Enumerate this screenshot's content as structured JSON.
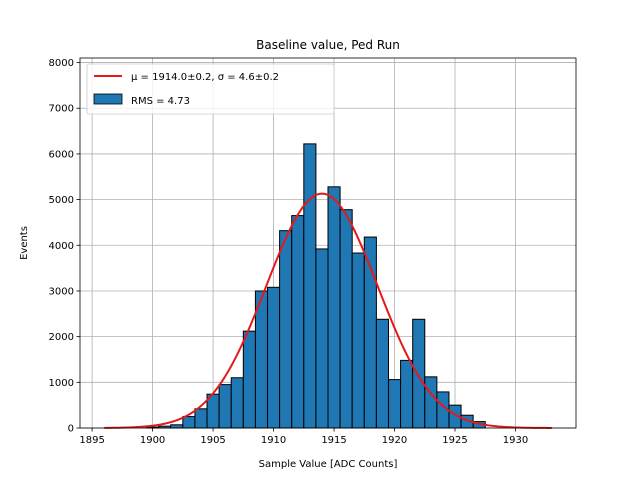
{
  "chart_data": {
    "type": "bar",
    "title": "Baseline value, Ped Run",
    "xlabel": "Sample Value [ADC Counts]",
    "ylabel": "Events",
    "xlim": [
      1894.0,
      1935.0
    ],
    "ylim": [
      0,
      8100
    ],
    "xticks": [
      1895,
      1900,
      1905,
      1910,
      1915,
      1920,
      1925,
      1930
    ],
    "yticks": [
      0,
      1000,
      2000,
      3000,
      4000,
      5000,
      6000,
      7000,
      8000
    ],
    "grid": true,
    "legend_position": "top-left",
    "histogram": {
      "name": "RMS = 4.73",
      "color": "#1f77b4",
      "bin_width": 1,
      "bin_edges_start": 1899.5,
      "values": [
        20,
        40,
        70,
        250,
        420,
        740,
        950,
        1100,
        2120,
        3000,
        3080,
        4320,
        4650,
        6220,
        3920,
        5280,
        4780,
        3830,
        4180,
        2380,
        1060,
        1480,
        2380,
        1120,
        790,
        500,
        280,
        140
      ]
    },
    "fit": {
      "name": "$\\mu = 1914.0\\pm0.2$, $\\sigma = 4.6\\pm0.2$",
      "label_text": "μ = 1914.0±0.2, σ = 4.6±0.2",
      "color": "#e31a1c",
      "mu": 1914.0,
      "sigma": 4.6,
      "amplitude": 5130,
      "x_range": [
        1896,
        1933
      ]
    }
  }
}
